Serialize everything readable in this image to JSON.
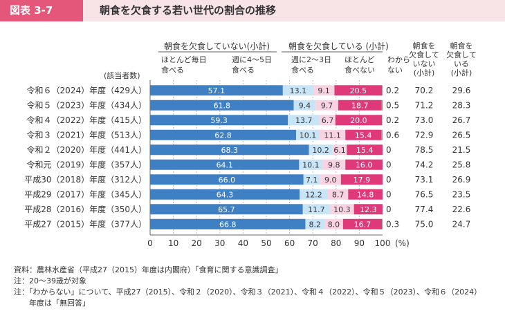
{
  "header": {
    "label": "図表 3-7",
    "title": "朝食を欠食する若い世代の割合の推移"
  },
  "legend": {
    "group_skip": "朝食を欠食していない(小計)",
    "group_eat": "朝食を欠食している (小計)",
    "cat1": [
      "ほとんど毎日",
      "食べる"
    ],
    "cat2": [
      "週に4～5日",
      "食べる"
    ],
    "cat3": [
      "週に2～3日",
      "食べる"
    ],
    "cat4": [
      "ほとんど",
      "食べない"
    ],
    "cat5": [
      "わから",
      "ない"
    ],
    "col_a": [
      "朝食を",
      "欠食して",
      "いない",
      "(小計)"
    ],
    "col_b": [
      "朝食を",
      "欠食して",
      "いる",
      "(小計)"
    ],
    "respondents": "(該当者数)"
  },
  "chart_data": {
    "type": "bar",
    "orientation": "horizontal-stacked",
    "categories": [
      "令和６（2024）年度（429人）",
      "令和５（2023）年度（434人）",
      "令和４（2022）年度（415人）",
      "令和３（2021）年度（513人）",
      "令和２（2020）年度（441人）",
      "令和元（2019）年度（357人）",
      "平成30（2018）年度（312人）",
      "平成29（2017）年度（345人）",
      "平成28（2016）年度（350人）",
      "平成27（2015）年度（377人）"
    ],
    "series": [
      {
        "name": "ほとんど毎日食べる",
        "color": "#3f7fc4",
        "values": [
          57.1,
          61.8,
          59.3,
          62.8,
          68.3,
          64.1,
          66.0,
          64.3,
          65.7,
          66.8
        ]
      },
      {
        "name": "週に4～5日食べる",
        "color": "#c8e4f7",
        "values": [
          13.1,
          9.4,
          13.7,
          10.1,
          10.2,
          10.1,
          7.1,
          12.2,
          11.7,
          8.2
        ]
      },
      {
        "name": "週に2～3日食べる",
        "color": "#f9d3e2",
        "values": [
          9.1,
          9.7,
          6.7,
          11.1,
          6.1,
          9.8,
          9.0,
          8.7,
          10.3,
          8.0
        ]
      },
      {
        "name": "ほとんど食べない",
        "color": "#e0397a",
        "values": [
          20.5,
          18.7,
          20.0,
          15.4,
          15.4,
          16.0,
          17.9,
          14.8,
          12.3,
          16.7
        ]
      },
      {
        "name": "わからない",
        "color": "#999999",
        "values": [
          0.2,
          0.5,
          0.2,
          0.6,
          0,
          0,
          0,
          0,
          0,
          0.3
        ]
      }
    ],
    "labels": {
      "cat1": [
        "57.1",
        "61.8",
        "59.3",
        "62.8",
        "68.3",
        "64.1",
        "66.0",
        "64.3",
        "65.7",
        "66.8"
      ],
      "cat2": [
        "13.1",
        "9.4",
        "13.7",
        "10.1",
        "10.2",
        "10.1",
        "7.1",
        "12.2",
        "11.7",
        "8.2"
      ],
      "cat3": [
        "9.1",
        "9.7",
        "6.7",
        "11.1",
        "6.1",
        "9.8",
        "9.0",
        "8.7",
        "10.3",
        "8.0"
      ],
      "cat4": [
        "20.5",
        "18.7",
        "20.0",
        "15.4",
        "15.4",
        "16.0",
        "17.9",
        "14.8",
        "12.3",
        "16.7"
      ],
      "cat5": [
        "0.2",
        "0.5",
        "0.2",
        "0.6",
        "0",
        "0",
        "0",
        "0",
        "0",
        "0.3"
      ]
    },
    "subtotal_not_skipping": [
      "70.2",
      "71.2",
      "73.0",
      "72.9",
      "78.5",
      "74.2",
      "73.1",
      "76.5",
      "77.4",
      "75.0"
    ],
    "subtotal_skipping": [
      "29.6",
      "28.3",
      "26.7",
      "26.5",
      "21.5",
      "25.8",
      "26.9",
      "23.5",
      "22.6",
      "24.7"
    ],
    "xlim": [
      0,
      100
    ],
    "xticks": [
      "0",
      "10",
      "20",
      "30",
      "40",
      "50",
      "60",
      "70",
      "80",
      "90",
      "100"
    ],
    "xunit": "(%)"
  },
  "notes": [
    "資料：農林水産省（平成27（2015）年度は内閣府）「食育に関する意識調査」",
    "注：20～39歳が対象",
    "注：「わからない」について、平成27（2015）、令和２（2020）、令和３（2021）、令和４（2022）、令和５（2023）、令和６（2024）",
    "年度は「無回答」"
  ]
}
